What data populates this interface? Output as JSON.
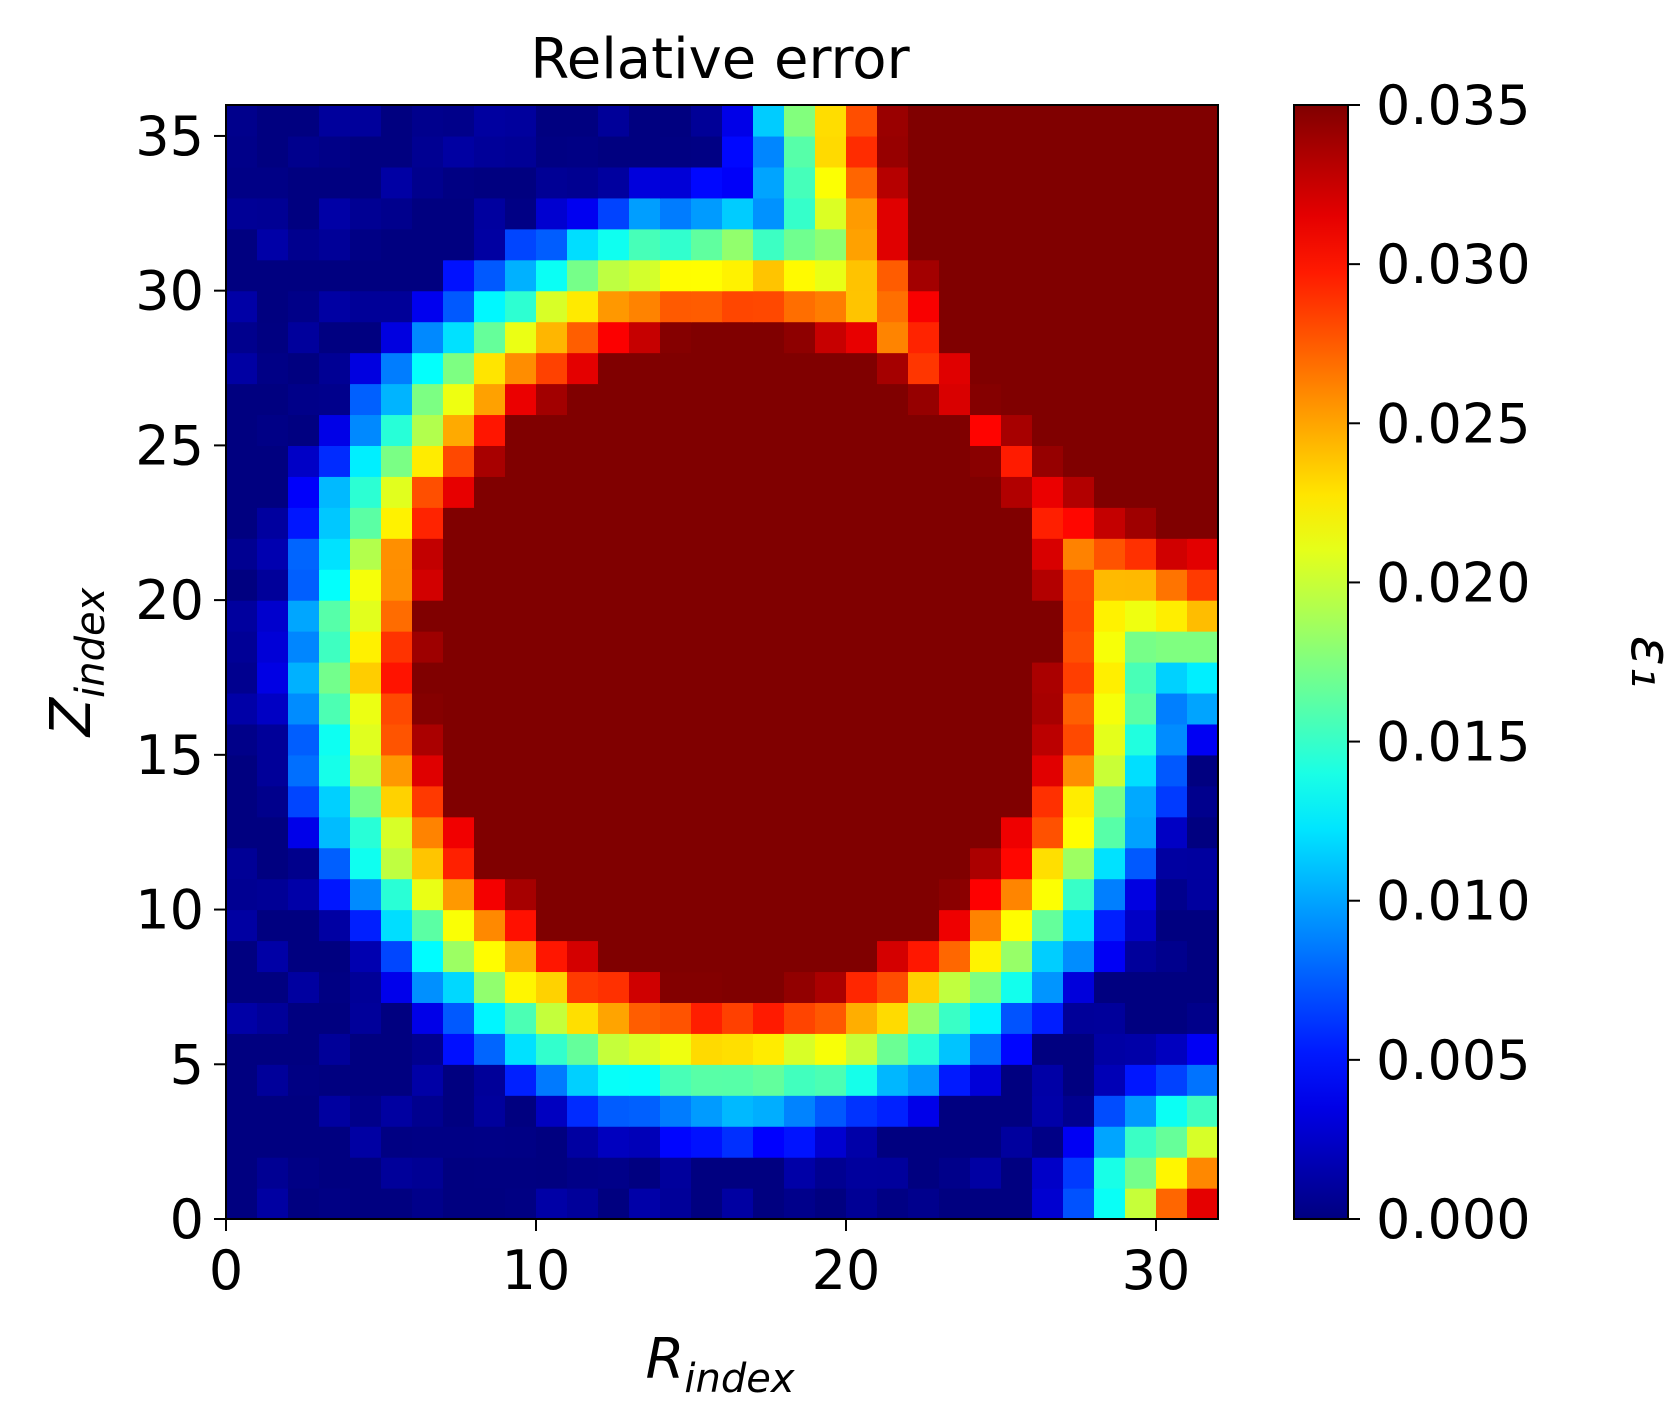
{
  "chart_data": {
    "type": "heatmap",
    "title": "Relative error",
    "xlabel": {
      "base": "R",
      "sub": "index"
    },
    "ylabel": {
      "base": "Z",
      "sub": "index"
    },
    "colorbar_label": "ε₁",
    "colormap": "jet",
    "xlim": [
      0,
      32
    ],
    "ylim": [
      0,
      36
    ],
    "vmin": 0.0,
    "vmax": 0.035,
    "x_ticks": [
      0,
      10,
      20,
      30
    ],
    "y_ticks": [
      0,
      5,
      10,
      15,
      20,
      25,
      30,
      35
    ],
    "colorbar_ticks": [
      "0.000",
      "0.005",
      "0.010",
      "0.015",
      "0.020",
      "0.025",
      "0.030",
      "0.035"
    ],
    "grid": false,
    "n_cols": 32,
    "n_rows": 36,
    "description_of_values": "Band of low relative error (~0.000–0.010) surrounding a large saturated region (>=0.035) centered near R=16, Z=18, with a second saturated region in the upper-right corner. Values rise toward 0.035 approaching both saturated regions.",
    "feature_params": {
      "inner_blob": {
        "cx": 16.5,
        "cy": 18.0,
        "rx": 10.0,
        "ry": 10.5
      },
      "outer_blob": {
        "cx": 33.0,
        "cy": 37.0,
        "rx": 11.5,
        "ry": 15.0
      }
    }
  }
}
